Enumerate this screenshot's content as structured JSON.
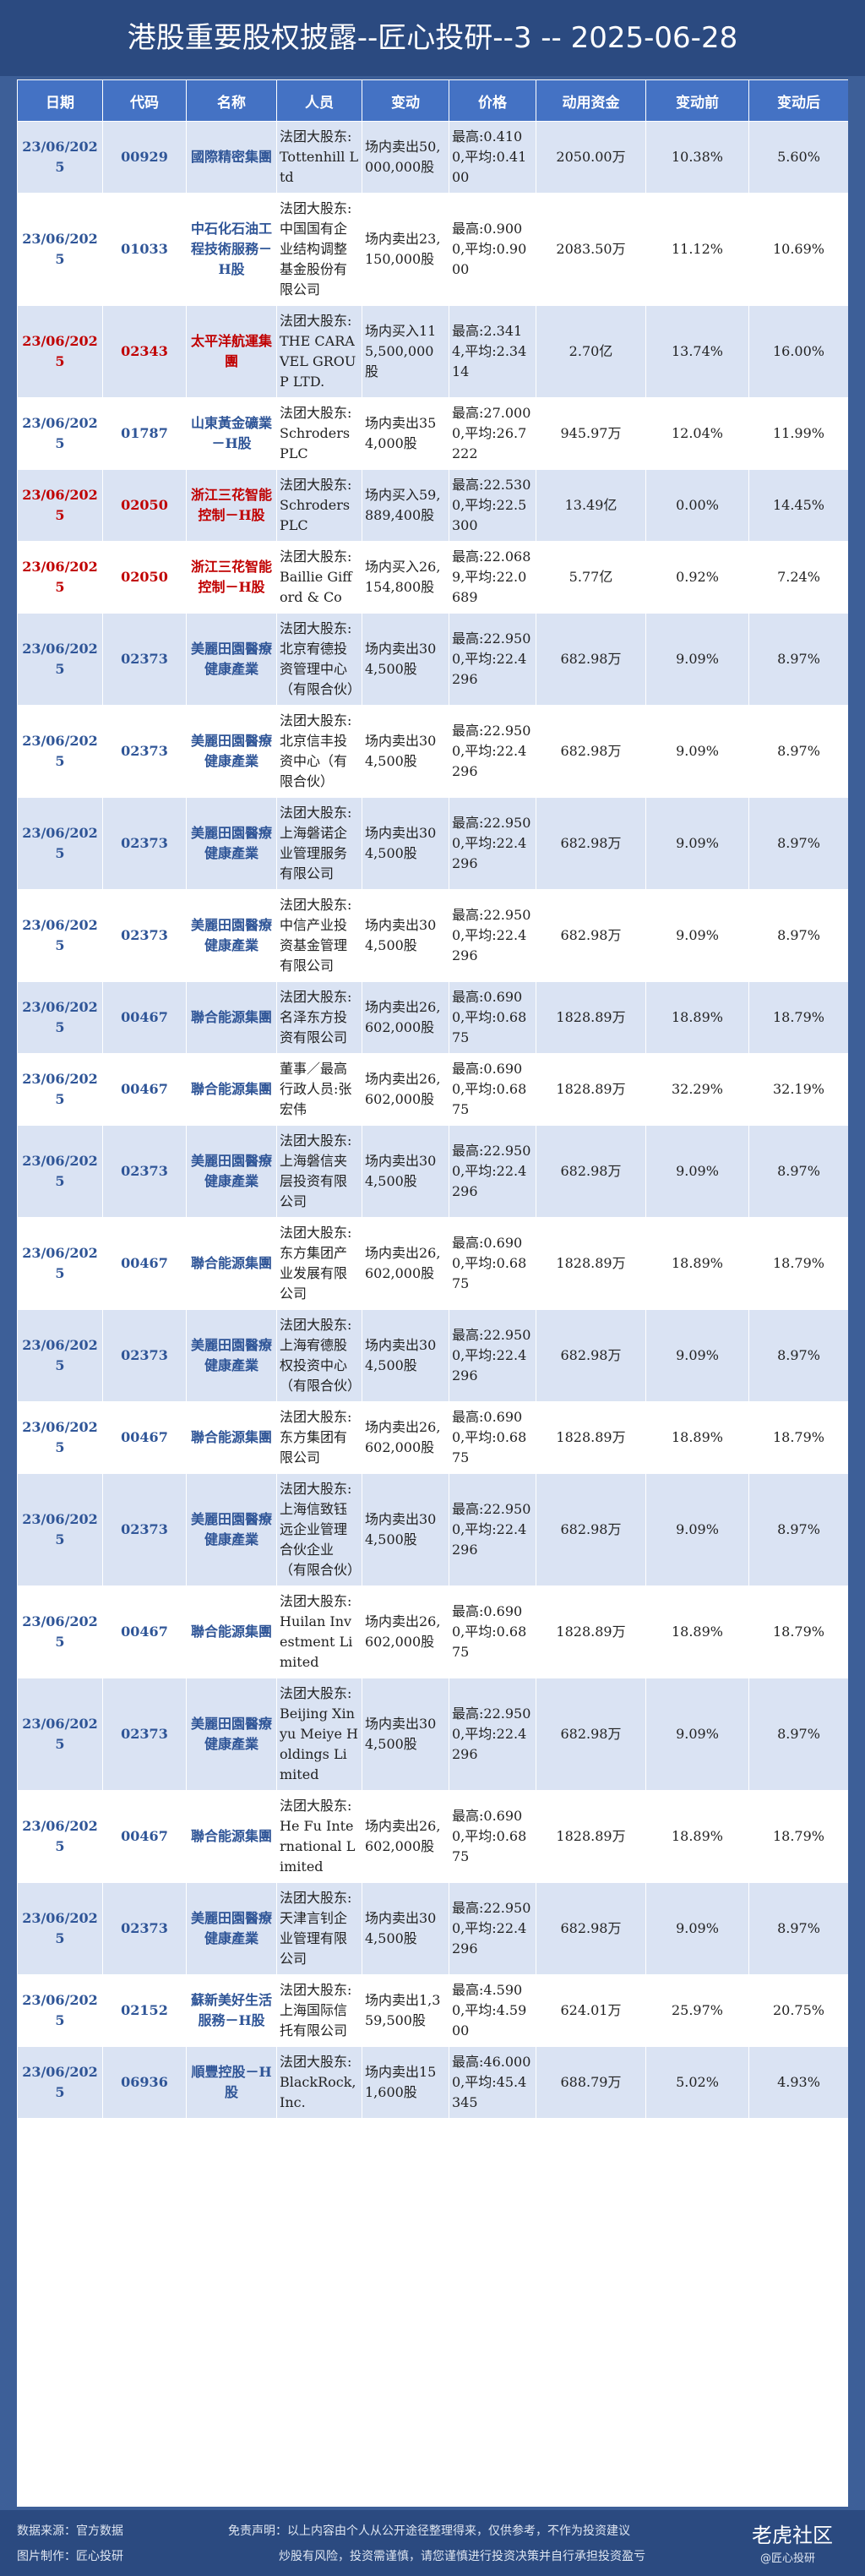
{
  "header": {
    "title": "港股重要股权披露--匠心投研--3 -- 2025-06-28"
  },
  "table": {
    "columns": [
      "日期",
      "代码",
      "名称",
      "人员",
      "变动",
      "价格",
      "动用资金",
      "变动前",
      "变动后"
    ],
    "rows": [
      {
        "color": "#2f5597",
        "cells": [
          "23/06/2025",
          "00929",
          "國際精密集團",
          "法团大股东:Tottenhill Ltd",
          "场内卖出50,000,000股",
          "最高:0.4100,平均:0.4100",
          "2050.00万",
          "10.38%",
          "5.60%"
        ]
      },
      {
        "color": "#2f5597",
        "cells": [
          "23/06/2025",
          "01033",
          "中石化石油工程技術服務－H股",
          "法团大股东:中国国有企业结构调整基金股份有限公司",
          "场内卖出23,150,000股",
          "最高:0.9000,平均:0.9000",
          "2083.50万",
          "11.12%",
          "10.69%"
        ]
      },
      {
        "color": "#c00000",
        "cells": [
          "23/06/2025",
          "02343",
          "太平洋航運集團",
          "法团大股东:THE CARAVEL GROUP LTD.",
          "场内买入115,500,000股",
          "最高:2.3414,平均:2.3414",
          "2.70亿",
          "13.74%",
          "16.00%"
        ]
      },
      {
        "color": "#2f5597",
        "cells": [
          "23/06/2025",
          "01787",
          "山東黃金礦業－H股",
          "法团大股东:Schroders PLC",
          "场内卖出354,000股",
          "最高:27.0000,平均:26.7222",
          "945.97万",
          "12.04%",
          "11.99%"
        ]
      },
      {
        "color": "#c00000",
        "cells": [
          "23/06/2025",
          "02050",
          "浙江三花智能控制－H股",
          "法团大股东:Schroders PLC",
          "场内买入59,889,400股",
          "最高:22.5300,平均:22.5300",
          "13.49亿",
          "0.00%",
          "14.45%"
        ]
      },
      {
        "color": "#c00000",
        "cells": [
          "23/06/2025",
          "02050",
          "浙江三花智能控制－H股",
          "法团大股东:Baillie Gifford & Co",
          "场内买入26,154,800股",
          "最高:22.0689,平均:22.0689",
          "5.77亿",
          "0.92%",
          "7.24%"
        ]
      },
      {
        "color": "#2f5597",
        "cells": [
          "23/06/2025",
          "02373",
          "美麗田園醫療健康產業",
          "法团大股东:北京宥德投资管理中心（有限合伙）",
          "场内卖出304,500股",
          "最高:22.9500,平均:22.4296",
          "682.98万",
          "9.09%",
          "8.97%"
        ]
      },
      {
        "color": "#2f5597",
        "cells": [
          "23/06/2025",
          "02373",
          "美麗田園醫療健康產業",
          "法团大股东:北京信丰投资中心（有限合伙）",
          "场内卖出304,500股",
          "最高:22.9500,平均:22.4296",
          "682.98万",
          "9.09%",
          "8.97%"
        ]
      },
      {
        "color": "#2f5597",
        "cells": [
          "23/06/2025",
          "02373",
          "美麗田園醫療健康產業",
          "法团大股东:上海磐诺企业管理服务有限公司",
          "场内卖出304,500股",
          "最高:22.9500,平均:22.4296",
          "682.98万",
          "9.09%",
          "8.97%"
        ]
      },
      {
        "color": "#2f5597",
        "cells": [
          "23/06/2025",
          "02373",
          "美麗田園醫療健康產業",
          "法团大股东:中信产业投资基金管理有限公司",
          "场内卖出304,500股",
          "最高:22.9500,平均:22.4296",
          "682.98万",
          "9.09%",
          "8.97%"
        ]
      },
      {
        "color": "#2f5597",
        "cells": [
          "23/06/2025",
          "00467",
          "聯合能源集團",
          "法团大股东:名泽东方投资有限公司",
          "场内卖出26,602,000股",
          "最高:0.6900,平均:0.6875",
          "1828.89万",
          "18.89%",
          "18.79%"
        ]
      },
      {
        "color": "#2f5597",
        "cells": [
          "23/06/2025",
          "00467",
          "聯合能源集團",
          "董事／最高行政人员:张宏伟",
          "场内卖出26,602,000股",
          "最高:0.6900,平均:0.6875",
          "1828.89万",
          "32.29%",
          "32.19%"
        ]
      },
      {
        "color": "#2f5597",
        "cells": [
          "23/06/2025",
          "02373",
          "美麗田園醫療健康產業",
          "法团大股东:上海磐信夹层投资有限公司",
          "场内卖出304,500股",
          "最高:22.9500,平均:22.4296",
          "682.98万",
          "9.09%",
          "8.97%"
        ]
      },
      {
        "color": "#2f5597",
        "cells": [
          "23/06/2025",
          "00467",
          "聯合能源集團",
          "法团大股东:东方集团产业发展有限公司",
          "场内卖出26,602,000股",
          "最高:0.6900,平均:0.6875",
          "1828.89万",
          "18.89%",
          "18.79%"
        ]
      },
      {
        "color": "#2f5597",
        "cells": [
          "23/06/2025",
          "02373",
          "美麗田園醫療健康產業",
          "法团大股东:上海宥德股权投资中心（有限合伙）",
          "场内卖出304,500股",
          "最高:22.9500,平均:22.4296",
          "682.98万",
          "9.09%",
          "8.97%"
        ]
      },
      {
        "color": "#2f5597",
        "cells": [
          "23/06/2025",
          "00467",
          "聯合能源集團",
          "法团大股东:东方集团有限公司",
          "场内卖出26,602,000股",
          "最高:0.6900,平均:0.6875",
          "1828.89万",
          "18.89%",
          "18.79%"
        ]
      },
      {
        "color": "#2f5597",
        "cells": [
          "23/06/2025",
          "02373",
          "美麗田園醫療健康產業",
          "法团大股东:上海信致钰远企业管理合伙企业（有限合伙）",
          "场内卖出304,500股",
          "最高:22.9500,平均:22.4296",
          "682.98万",
          "9.09%",
          "8.97%"
        ]
      },
      {
        "color": "#2f5597",
        "cells": [
          "23/06/2025",
          "00467",
          "聯合能源集團",
          "法团大股东:Huilan Investment Limited",
          "场内卖出26,602,000股",
          "最高:0.6900,平均:0.6875",
          "1828.89万",
          "18.89%",
          "18.79%"
        ]
      },
      {
        "color": "#2f5597",
        "cells": [
          "23/06/2025",
          "02373",
          "美麗田園醫療健康產業",
          "法团大股东:Beijing Xinyu Meiye Holdings Limited",
          "场内卖出304,500股",
          "最高:22.9500,平均:22.4296",
          "682.98万",
          "9.09%",
          "8.97%"
        ]
      },
      {
        "color": "#2f5597",
        "cells": [
          "23/06/2025",
          "00467",
          "聯合能源集團",
          "法团大股东:He Fu International Limited",
          "场内卖出26,602,000股",
          "最高:0.6900,平均:0.6875",
          "1828.89万",
          "18.89%",
          "18.79%"
        ]
      },
      {
        "color": "#2f5597",
        "cells": [
          "23/06/2025",
          "02373",
          "美麗田園醫療健康產業",
          "法团大股东:天津言钊企业管理有限公司",
          "场内卖出304,500股",
          "最高:22.9500,平均:22.4296",
          "682.98万",
          "9.09%",
          "8.97%"
        ]
      },
      {
        "color": "#2f5597",
        "cells": [
          "23/06/2025",
          "02152",
          "蘇新美好生活服務－H股",
          "法团大股东:上海国际信托有限公司",
          "场内卖出1,359,500股",
          "最高:4.5900,平均:4.5900",
          "624.01万",
          "25.97%",
          "20.75%"
        ]
      },
      {
        "color": "#2f5597",
        "cells": [
          "23/06/2025",
          "06936",
          "順豐控股－H股",
          "法团大股东:BlackRock, Inc.",
          "场内卖出151,600股",
          "最高:46.0000,平均:45.4345",
          "688.79万",
          "5.02%",
          "4.93%"
        ]
      }
    ]
  },
  "footer": {
    "source": "数据来源：官方数据",
    "maker": "图片制作：匠心投研",
    "disclaimer": "免责声明：以上内容由个人从公开途径整理得来，仅供参考，不作为投资建议",
    "risk": "炒股有风险，投资需谨慎，请您谨慎进行投资决策并自行承担投资盈亏",
    "watermark": "老虎社区",
    "watermark_author": "@匠心投研"
  }
}
